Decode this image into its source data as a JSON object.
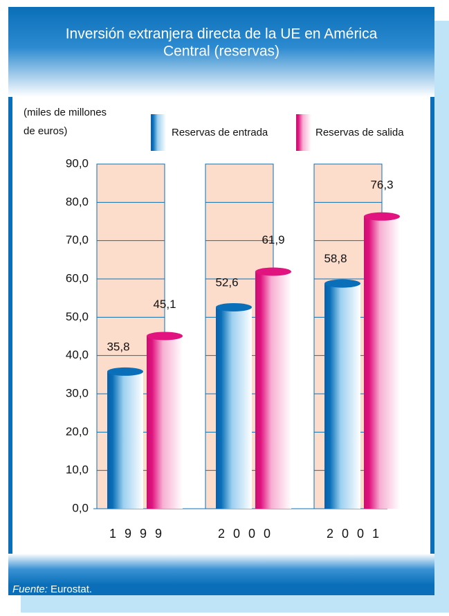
{
  "chart_data": {
    "type": "cylinder_bar",
    "title": [
      "Inversión extranjera directa de la UE en América",
      "Central (reservas)"
    ],
    "y_label": [
      "(miles de millones",
      "de euros)"
    ],
    "categories": [
      "1999",
      "2000",
      "2001"
    ],
    "series": [
      {
        "name": "Reservas de entrada",
        "color": "#0a6fb8",
        "values": [
          35.8,
          52.6,
          58.8
        ],
        "value_labels": [
          "35,8",
          "52,6",
          "58,8"
        ]
      },
      {
        "name": "Reservas de salida",
        "color": "#e0137f",
        "values": [
          45.1,
          61.9,
          76.3
        ],
        "value_labels": [
          "45,1",
          "61,9",
          "76,3"
        ]
      }
    ],
    "ylim": [
      0,
      90
    ],
    "yticks": [
      {
        "value": 0,
        "label": "0,0"
      },
      {
        "value": 10,
        "label": "10,0"
      },
      {
        "value": 20,
        "label": "20,0"
      },
      {
        "value": 30,
        "label": "30,0"
      },
      {
        "value": 40,
        "label": "40,0"
      },
      {
        "value": 50,
        "label": "50,0"
      },
      {
        "value": 60,
        "label": "60,0"
      },
      {
        "value": 70,
        "label": "70,0"
      },
      {
        "value": 80,
        "label": "80,0"
      },
      {
        "value": 90,
        "label": "90,0"
      }
    ],
    "grid": true,
    "source_label": "Fuente:",
    "source": "Eurostat."
  }
}
